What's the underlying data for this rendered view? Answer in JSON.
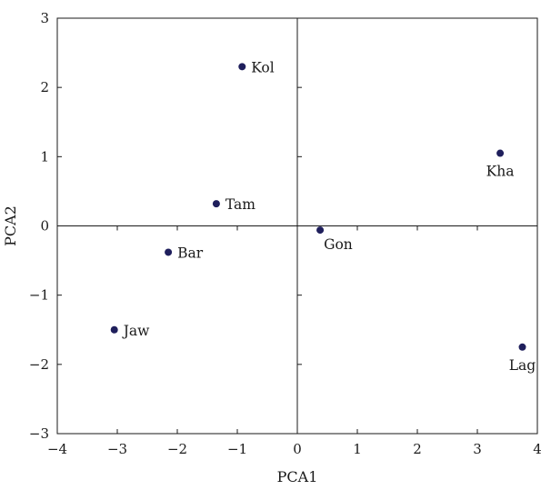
{
  "chart_data": {
    "type": "scatter",
    "xlabel": "PCA1",
    "ylabel": "PCA2",
    "xlim": [
      -4,
      4
    ],
    "ylim": [
      -3,
      3
    ],
    "xticks": [
      -4,
      -3,
      -2,
      -1,
      0,
      1,
      2,
      3,
      4
    ],
    "yticks": [
      -3,
      -2,
      -1,
      0,
      1,
      2,
      3
    ],
    "grid": false,
    "point_color": "#1f1f5c",
    "points": [
      {
        "label": "Kol",
        "x": -0.92,
        "y": 2.3,
        "label_pos": "right"
      },
      {
        "label": "Tam",
        "x": -1.35,
        "y": 0.32,
        "label_pos": "right"
      },
      {
        "label": "Bar",
        "x": -2.15,
        "y": -0.38,
        "label_pos": "right"
      },
      {
        "label": "Jaw",
        "x": -3.05,
        "y": -1.5,
        "label_pos": "right"
      },
      {
        "label": "Gon",
        "x": 0.38,
        "y": -0.06,
        "label_pos": "below-right"
      },
      {
        "label": "Kha",
        "x": 3.38,
        "y": 1.05,
        "label_pos": "below"
      },
      {
        "label": "Lag",
        "x": 3.75,
        "y": -1.75,
        "label_pos": "below"
      }
    ]
  }
}
